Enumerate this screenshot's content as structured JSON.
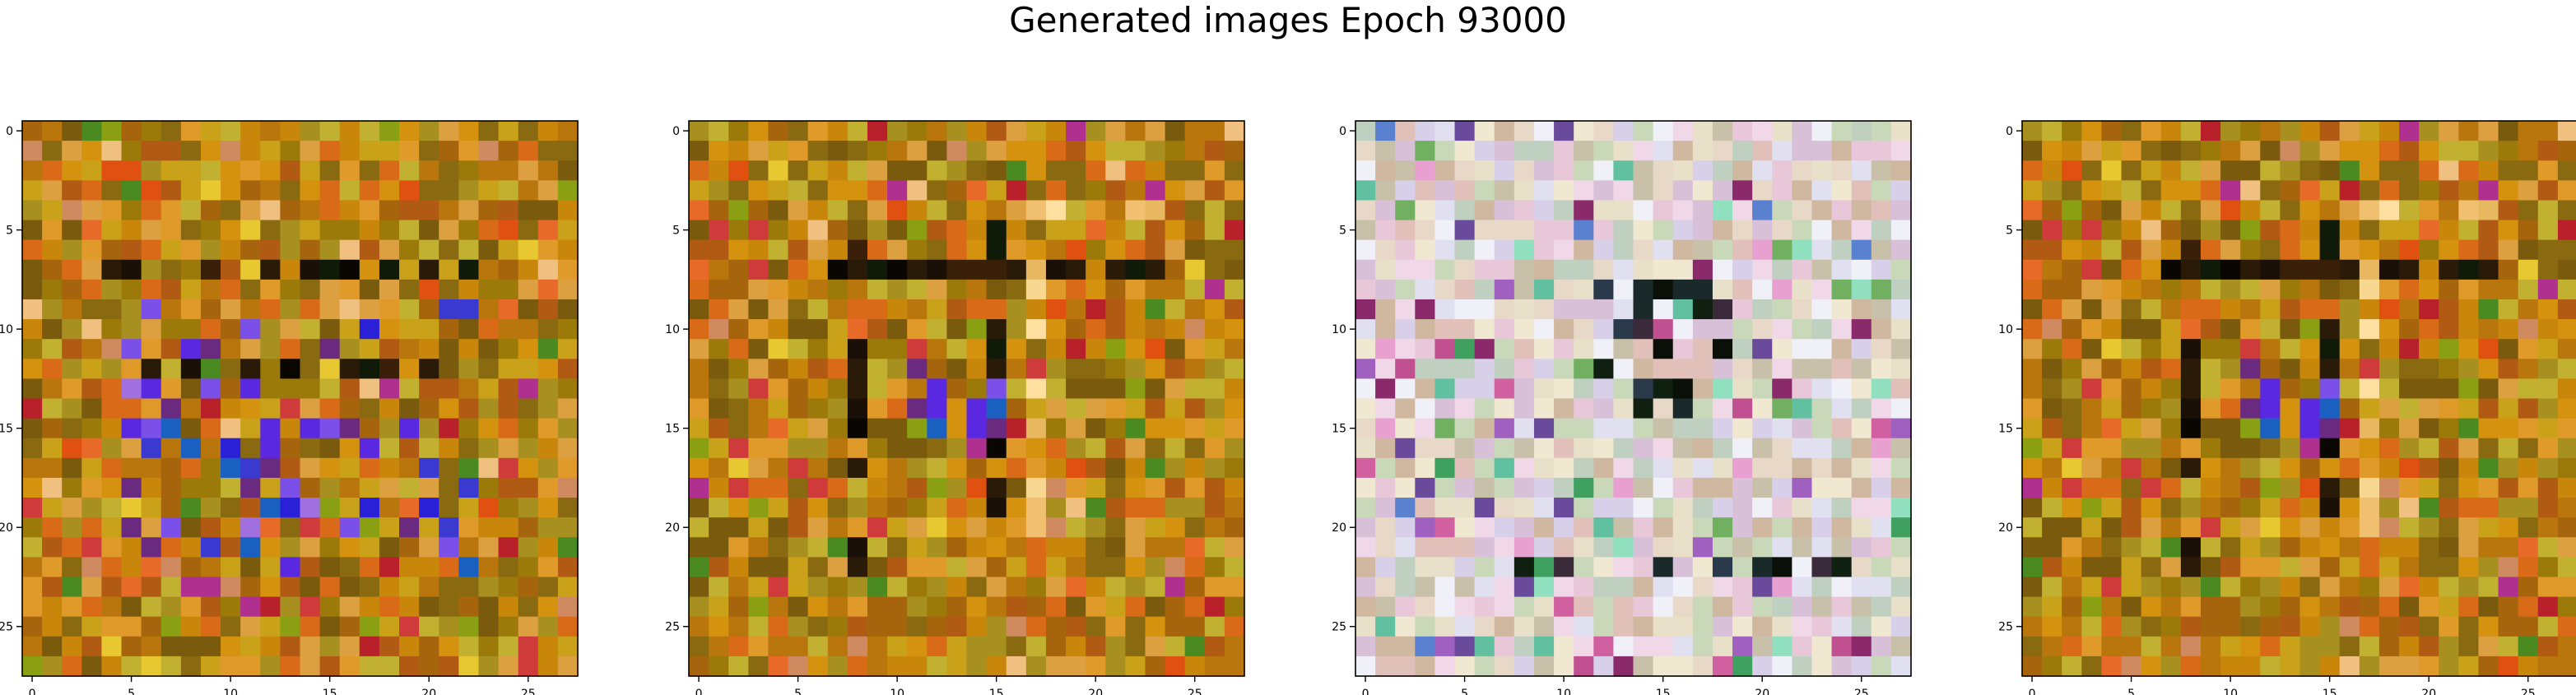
{
  "title": "Generated images Epoch 93000",
  "palette": {
    "warm": [
      "#c8860a",
      "#b8760c",
      "#d4920e",
      "#a6650d",
      "#9c7a0a",
      "#c9a21a",
      "#e09a2a",
      "#b15a14",
      "#8a6a10",
      "#d86a18",
      "#c2b030",
      "#7a5a0c",
      "#a89020",
      "#dca040"
    ],
    "warm_accent": [
      "#e05010",
      "#e8c830",
      "#8aa012",
      "#b8202a",
      "#cf3a3a",
      "#f0c080",
      "#d08a60",
      "#4a8a20",
      "#b03090",
      "#e86a28"
    ],
    "cool_accent": [
      "#2a20d8",
      "#5a28e0",
      "#7a50e8",
      "#1a60c0",
      "#6a2a80",
      "#3a3ad0",
      "#a070e0"
    ],
    "dark": [
      "#0a0602",
      "#1a1008",
      "#2a1a08",
      "#3a2008",
      "#101a08"
    ],
    "pastel": [
      "#e8d8c8",
      "#d8c0d8",
      "#c8d8b8",
      "#e0e0f0",
      "#f0f0f8",
      "#d0b8a0",
      "#e8c8d8",
      "#c0d0c0",
      "#f0e8d0",
      "#d8d0e8",
      "#e0c0b8",
      "#c8c0a8",
      "#f0d8e8",
      "#e8e0c8"
    ],
    "pastel_accent": [
      "#a060c0",
      "#8a2a6a",
      "#d060a0",
      "#60c0a0",
      "#5a80d0",
      "#40a060",
      "#90e0c0",
      "#c05090",
      "#70b060",
      "#e8a0d0",
      "#6a4a9a"
    ],
    "pastel_dark": [
      "#0a1008",
      "#1a2a2a",
      "#3a2a3a",
      "#2a3a4a",
      "#102010"
    ]
  },
  "chart_data": [
    {
      "type": "heatmap",
      "size": 28,
      "x_ticks": [
        0,
        5,
        10,
        15,
        20,
        25
      ],
      "y_ticks": [
        0,
        5,
        10,
        15,
        20,
        25
      ],
      "scheme": "warm-blue",
      "seed": 11,
      "features": [
        {
          "kind": "hline",
          "row": 7,
          "c0": 4,
          "c1": 22,
          "color": "dark",
          "p": 0.55
        },
        {
          "kind": "hline",
          "row": 12,
          "c0": 6,
          "c1": 22,
          "color": "dark",
          "p": 0.35
        },
        {
          "kind": "blob",
          "r0": 9,
          "r1": 22,
          "c0": 5,
          "c1": 22,
          "color": "cool_accent",
          "p": 0.22
        }
      ]
    },
    {
      "type": "heatmap",
      "size": 28,
      "x_ticks": [
        0,
        5,
        10,
        15,
        20,
        25
      ],
      "y_ticks": [
        0,
        5,
        10,
        15,
        20,
        25
      ],
      "scheme": "warm-frame",
      "seed": 29,
      "features": [
        {
          "kind": "hline",
          "row": 7,
          "c0": 7,
          "c1": 23,
          "color": "dark",
          "p": 0.85
        },
        {
          "kind": "vline",
          "col": 8,
          "r0": 5,
          "r1": 22,
          "color": "dark",
          "p": 0.5
        },
        {
          "kind": "vline",
          "col": 15,
          "r0": 5,
          "r1": 19,
          "color": "dark",
          "p": 0.8
        },
        {
          "kind": "hline",
          "row": 4,
          "c0": 16,
          "c1": 23,
          "color": "light",
          "p": 0.7
        },
        {
          "kind": "vline",
          "col": 17,
          "r0": 4,
          "r1": 21,
          "color": "light",
          "p": 0.55
        },
        {
          "kind": "blob",
          "r0": 12,
          "r1": 15,
          "c0": 11,
          "c1": 15,
          "color": "cool_accent",
          "p": 0.35
        }
      ]
    },
    {
      "type": "heatmap",
      "size": 28,
      "x_ticks": [
        0,
        5,
        10,
        15,
        20,
        25
      ],
      "y_ticks": [
        0,
        5,
        10,
        15,
        20,
        25
      ],
      "scheme": "pastel",
      "seed": 47,
      "features": [
        {
          "kind": "blob",
          "r0": 8,
          "r1": 14,
          "c0": 12,
          "c1": 18,
          "color": "pastel_dark",
          "p": 0.35
        },
        {
          "kind": "hline",
          "row": 22,
          "c0": 3,
          "c1": 24,
          "color": "pastel_dark",
          "p": 0.4
        },
        {
          "kind": "hline",
          "row": 24,
          "c0": 2,
          "c1": 22,
          "color": "pastel",
          "p": 0.9
        }
      ]
    },
    {
      "type": "heatmap",
      "size": 28,
      "x_ticks": [
        0,
        5,
        10,
        15,
        20,
        25
      ],
      "y_ticks": [
        0,
        5,
        10,
        15,
        20,
        25
      ],
      "scheme": "warm-frame",
      "seed": 29,
      "features": [
        {
          "kind": "hline",
          "row": 7,
          "c0": 7,
          "c1": 23,
          "color": "dark",
          "p": 0.85
        },
        {
          "kind": "vline",
          "col": 8,
          "r0": 5,
          "r1": 22,
          "color": "dark",
          "p": 0.5
        },
        {
          "kind": "vline",
          "col": 15,
          "r0": 5,
          "r1": 19,
          "color": "dark",
          "p": 0.8
        },
        {
          "kind": "hline",
          "row": 4,
          "c0": 16,
          "c1": 23,
          "color": "light",
          "p": 0.7
        },
        {
          "kind": "vline",
          "col": 17,
          "r0": 4,
          "r1": 21,
          "color": "light",
          "p": 0.55
        },
        {
          "kind": "blob",
          "r0": 12,
          "r1": 15,
          "c0": 11,
          "c1": 15,
          "color": "cool_accent",
          "p": 0.35
        }
      ]
    }
  ]
}
